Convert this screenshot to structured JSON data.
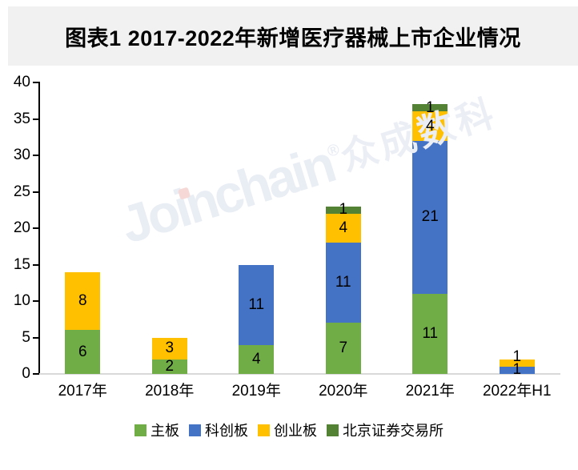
{
  "figure": {
    "title": "图表1 2017-2022年新增医疗器械上市企业情况"
  },
  "chart_data": {
    "type": "bar",
    "stacked": true,
    "title": "图表1 2017-2022年新增医疗器械上市企业情况",
    "categories": [
      "2017年",
      "2018年",
      "2019年",
      "2020年",
      "2021年",
      "2022年H1"
    ],
    "series": [
      {
        "name": "主板",
        "color": "#70AD47",
        "values": [
          6,
          2,
          4,
          7,
          11,
          0
        ]
      },
      {
        "name": "科创板",
        "color": "#4472C4",
        "values": [
          0,
          0,
          11,
          11,
          21,
          1
        ]
      },
      {
        "name": "创业板",
        "color": "#FFC000",
        "values": [
          8,
          3,
          0,
          4,
          4,
          1
        ]
      },
      {
        "name": "北京证券交易所",
        "color": "#548235",
        "values": [
          0,
          0,
          0,
          1,
          1,
          0
        ]
      }
    ],
    "xlabel": "",
    "ylabel": "",
    "ylim": [
      0,
      40
    ],
    "yticks": [
      0,
      5,
      10,
      15,
      20,
      25,
      30,
      35,
      40
    ],
    "grid": false,
    "data_labels": true,
    "legend_position": "bottom"
  },
  "watermark": {
    "text_latin": "Joinchain",
    "text_reg": "®",
    "text_cjk": "众成数科",
    "color": "#E9EDF4",
    "i_dot_color": "#F6D9D7"
  },
  "colors": {
    "title_band_bg": "#F1F1F1",
    "axis_line": "#000000",
    "baseline": "#D9D9D9",
    "label_text": "#000000",
    "background": "#FFFFFF"
  }
}
